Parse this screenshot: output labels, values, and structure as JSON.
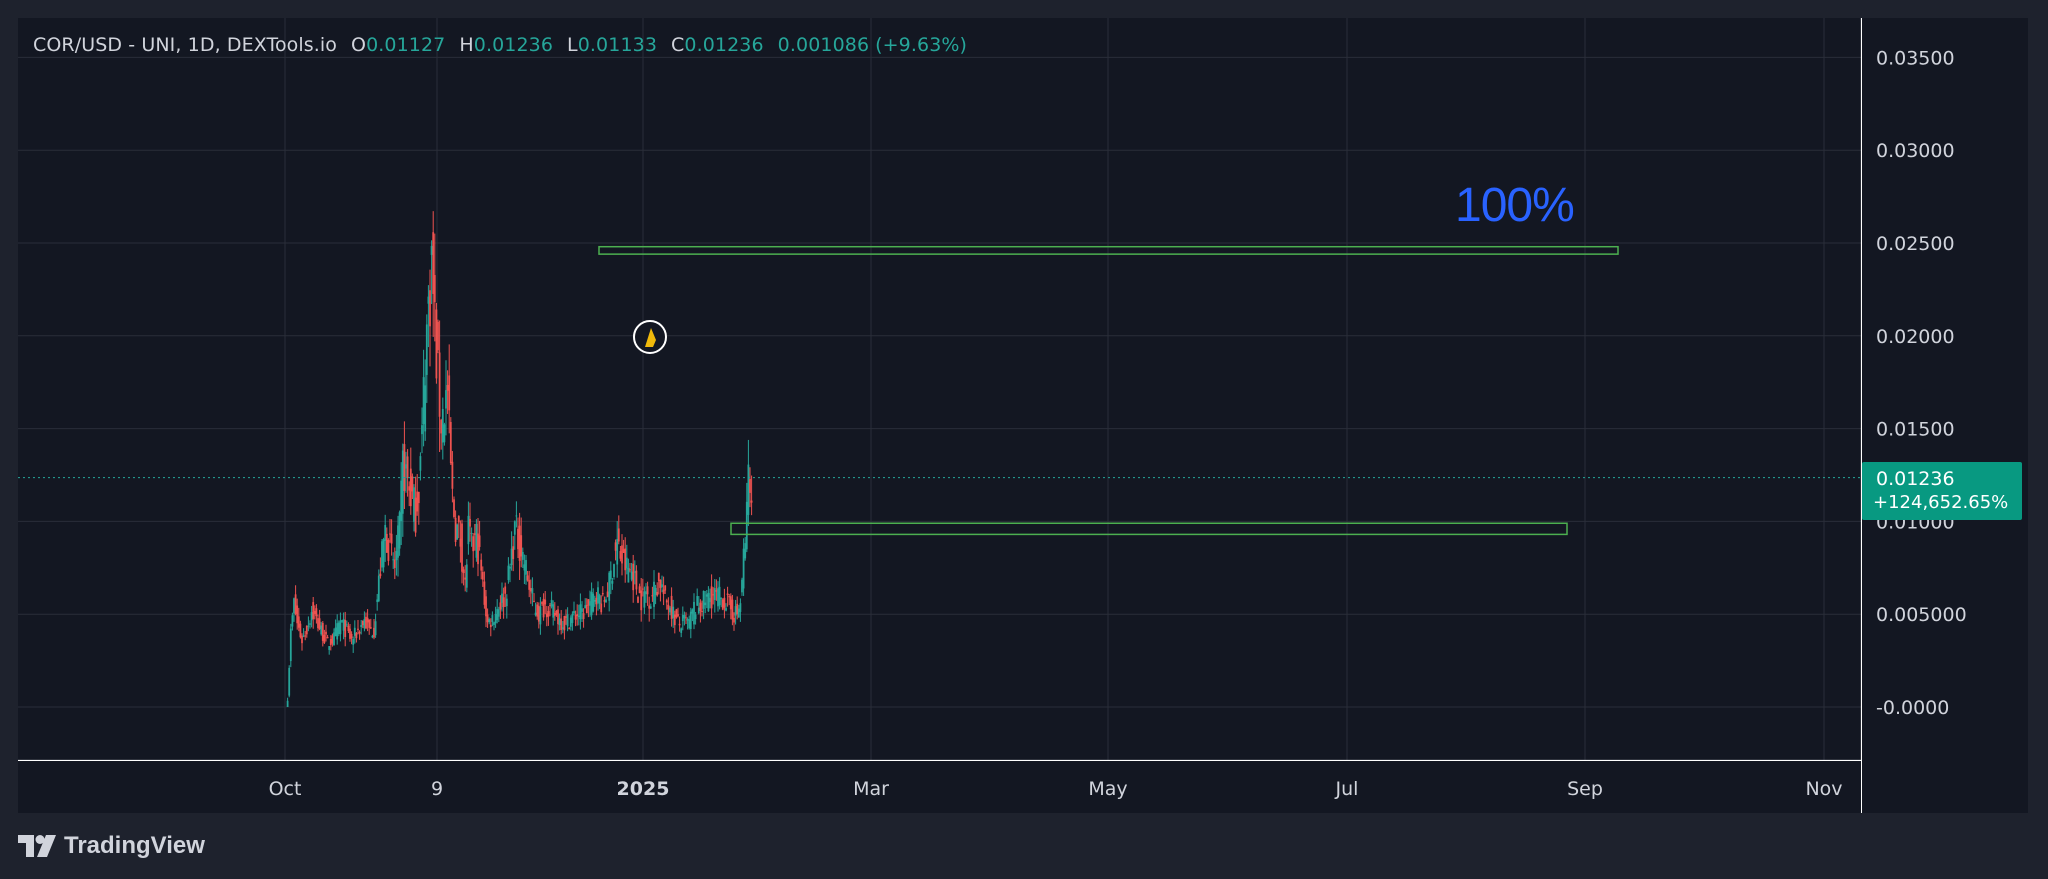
{
  "legend": {
    "symbol": "COR/USD - UNI, 1D, DEXTools.io",
    "open_label": "O",
    "open": "0.01127",
    "high_label": "H",
    "high": "0.01236",
    "low_label": "L",
    "low": "0.01133",
    "close_label": "C",
    "close": "0.01236",
    "change": "0.001086",
    "change_pct": "(+9.63%)"
  },
  "price_tag": {
    "price": "0.01236",
    "change_pct": "+124,652.65%"
  },
  "annotation": {
    "text": "100%"
  },
  "branding": {
    "name": "TradingView",
    "logo_icon": "tradingview-logo-icon"
  },
  "colors": {
    "background": "#1e222d",
    "pane": "#131722",
    "grid": "#2a2e39",
    "up": "#26a69a",
    "down": "#ef5350",
    "box": "#4caf50",
    "text": "#d1d4dc",
    "accent_blue": "#2962ff",
    "price_tag": "#089981"
  },
  "chart_data": {
    "type": "candlestick",
    "symbol": "COR/USD",
    "exchange": "UNI",
    "interval": "1D",
    "x_tick_labels": [
      "Oct",
      "9",
      "2025",
      "Mar",
      "May",
      "Jul",
      "Sep",
      "Nov"
    ],
    "y_tick_labels": [
      "0.03500",
      "0.03000",
      "0.02500",
      "0.02000",
      "0.01500",
      "0.01000",
      "0.005000",
      "-0.0000"
    ],
    "ylim": [
      -0.003,
      0.0375
    ],
    "grid": true,
    "last_price": 0.01236,
    "approx_daily_close": [
      {
        "x": 0,
        "close": 0.0005
      },
      {
        "x": 2,
        "close": 0.004
      },
      {
        "x": 4,
        "close": 0.0056
      },
      {
        "x": 6,
        "close": 0.0045
      },
      {
        "x": 9,
        "close": 0.0036
      },
      {
        "x": 12,
        "close": 0.0042
      },
      {
        "x": 15,
        "close": 0.0052
      },
      {
        "x": 18,
        "close": 0.0047
      },
      {
        "x": 21,
        "close": 0.0041
      },
      {
        "x": 25,
        "close": 0.0034
      },
      {
        "x": 29,
        "close": 0.0037
      },
      {
        "x": 33,
        "close": 0.0046
      },
      {
        "x": 36,
        "close": 0.0042
      },
      {
        "x": 40,
        "close": 0.0036
      },
      {
        "x": 44,
        "close": 0.0041
      },
      {
        "x": 48,
        "close": 0.0047
      },
      {
        "x": 51,
        "close": 0.0041
      },
      {
        "x": 54,
        "close": 0.0042
      },
      {
        "x": 58,
        "close": 0.0075
      },
      {
        "x": 61,
        "close": 0.0095
      },
      {
        "x": 64,
        "close": 0.0085
      },
      {
        "x": 67,
        "close": 0.0075
      },
      {
        "x": 70,
        "close": 0.0095
      },
      {
        "x": 72,
        "close": 0.013
      },
      {
        "x": 74,
        "close": 0.0125
      },
      {
        "x": 77,
        "close": 0.0115
      },
      {
        "x": 80,
        "close": 0.0105
      },
      {
        "x": 82,
        "close": 0.012
      },
      {
        "x": 84,
        "close": 0.0145
      },
      {
        "x": 86,
        "close": 0.019
      },
      {
        "x": 88,
        "close": 0.0215
      },
      {
        "x": 90,
        "close": 0.024
      },
      {
        "x": 92,
        "close": 0.0205
      },
      {
        "x": 94,
        "close": 0.0175
      },
      {
        "x": 96,
        "close": 0.0155
      },
      {
        "x": 98,
        "close": 0.0162
      },
      {
        "x": 100,
        "close": 0.017
      },
      {
        "x": 101,
        "close": 0.0145
      },
      {
        "x": 103,
        "close": 0.0112
      },
      {
        "x": 105,
        "close": 0.0098
      },
      {
        "x": 108,
        "close": 0.009
      },
      {
        "x": 111,
        "close": 0.0065
      },
      {
        "x": 113,
        "close": 0.0095
      },
      {
        "x": 115,
        "close": 0.0085
      },
      {
        "x": 118,
        "close": 0.0092
      },
      {
        "x": 120,
        "close": 0.008
      },
      {
        "x": 122,
        "close": 0.0065
      },
      {
        "x": 125,
        "close": 0.0045
      },
      {
        "x": 128,
        "close": 0.0048
      },
      {
        "x": 132,
        "close": 0.0055
      },
      {
        "x": 136,
        "close": 0.006
      },
      {
        "x": 139,
        "close": 0.0075
      },
      {
        "x": 142,
        "close": 0.0096
      },
      {
        "x": 145,
        "close": 0.0088
      },
      {
        "x": 148,
        "close": 0.0078
      },
      {
        "x": 151,
        "close": 0.0065
      },
      {
        "x": 154,
        "close": 0.0055
      },
      {
        "x": 157,
        "close": 0.005
      },
      {
        "x": 161,
        "close": 0.0055
      },
      {
        "x": 165,
        "close": 0.0052
      },
      {
        "x": 169,
        "close": 0.0048
      },
      {
        "x": 173,
        "close": 0.0045
      },
      {
        "x": 177,
        "close": 0.0048
      },
      {
        "x": 181,
        "close": 0.005
      },
      {
        "x": 185,
        "close": 0.0051
      },
      {
        "x": 189,
        "close": 0.0055
      },
      {
        "x": 193,
        "close": 0.0062
      },
      {
        "x": 197,
        "close": 0.0055
      },
      {
        "x": 201,
        "close": 0.0066
      },
      {
        "x": 204,
        "close": 0.008
      },
      {
        "x": 206,
        "close": 0.0088
      },
      {
        "x": 209,
        "close": 0.0079
      },
      {
        "x": 212,
        "close": 0.0075
      },
      {
        "x": 215,
        "close": 0.0073
      },
      {
        "x": 218,
        "close": 0.0065
      },
      {
        "x": 221,
        "close": 0.0058
      },
      {
        "x": 224,
        "close": 0.0062
      },
      {
        "x": 227,
        "close": 0.0058
      },
      {
        "x": 230,
        "close": 0.0065
      },
      {
        "x": 233,
        "close": 0.0068
      },
      {
        "x": 236,
        "close": 0.0057
      },
      {
        "x": 239,
        "close": 0.0055
      },
      {
        "x": 242,
        "close": 0.0048
      },
      {
        "x": 245,
        "close": 0.0044
      },
      {
        "x": 248,
        "close": 0.0046
      },
      {
        "x": 251,
        "close": 0.0045
      },
      {
        "x": 254,
        "close": 0.0053
      },
      {
        "x": 258,
        "close": 0.0055
      },
      {
        "x": 262,
        "close": 0.0058
      },
      {
        "x": 266,
        "close": 0.006
      },
      {
        "x": 270,
        "close": 0.0059
      },
      {
        "x": 274,
        "close": 0.0057
      },
      {
        "x": 278,
        "close": 0.0051
      },
      {
        "x": 281,
        "close": 0.005
      },
      {
        "x": 283,
        "close": 0.0056
      },
      {
        "x": 285,
        "close": 0.008
      },
      {
        "x": 286,
        "close": 0.0085
      },
      {
        "x": 287,
        "close": 0.0113
      },
      {
        "x": 288,
        "close": 0.0122
      },
      {
        "x": 289,
        "close": 0.0113
      },
      {
        "x": 290,
        "close": 0.01236
      }
    ],
    "zones": [
      {
        "low": 0.0244,
        "high": 0.0248
      },
      {
        "low": 0.0093,
        "high": 0.0099
      }
    ],
    "annotations": [
      "100%"
    ]
  }
}
